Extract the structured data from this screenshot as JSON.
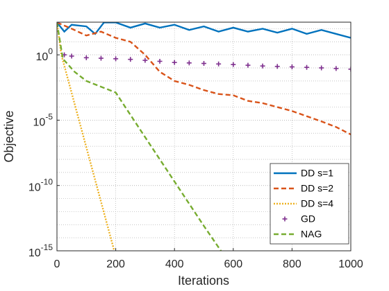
{
  "chart_data": {
    "type": "line",
    "xlabel": "Iterations",
    "ylabel": "Objective",
    "xlim": [
      0,
      1000
    ],
    "xticks": [
      0,
      200,
      400,
      600,
      800,
      1000
    ],
    "ylim": [
      1e-15,
      316
    ],
    "yticks": [
      {
        "value": 1e-15,
        "label": "10^-15"
      },
      {
        "value": 1e-10,
        "label": "10^-10"
      },
      {
        "value": 1e-05,
        "label": "10^-5"
      },
      {
        "value": 1,
        "label": "10^0"
      }
    ],
    "log_y": true,
    "grid": true,
    "minor_grid": true,
    "legend": "lower right",
    "series": [
      {
        "name": "DD s=1",
        "color": "#0072bd",
        "linestyle": "solid",
        "x": [
          0,
          25,
          50,
          100,
          130,
          160,
          200,
          250,
          300,
          350,
          400,
          450,
          500,
          550,
          600,
          650,
          700,
          750,
          800,
          850,
          900,
          950,
          1000
        ],
        "values": [
          300,
          60,
          200,
          150,
          40,
          300,
          300,
          120,
          250,
          120,
          200,
          80,
          150,
          60,
          120,
          60,
          100,
          50,
          100,
          40,
          80,
          40,
          20
        ]
      },
      {
        "name": "DD s=2",
        "color": "#d95319",
        "linestyle": "dashed",
        "x": [
          0,
          50,
          100,
          150,
          200,
          250,
          300,
          350,
          400,
          450,
          500,
          550,
          600,
          650,
          700,
          750,
          800,
          850,
          900,
          950,
          1000
        ],
        "values": [
          300,
          100,
          30,
          60,
          20,
          10,
          1,
          0.05,
          0.01,
          0.005,
          0.002,
          0.001,
          0.0008,
          0.0003,
          0.0002,
          0.0001,
          5e-05,
          2e-05,
          8e-06,
          3e-06,
          8e-07
        ]
      },
      {
        "name": "DD s=4",
        "color": "#edb120",
        "linestyle": "dotted",
        "x": [
          0,
          15,
          195
        ],
        "values": [
          300,
          1,
          1e-15
        ]
      },
      {
        "name": "GD",
        "color": "#7e2f8e",
        "linestyle": "none",
        "marker": "plus",
        "x": [
          0,
          25,
          50,
          100,
          150,
          200,
          250,
          300,
          350,
          400,
          450,
          500,
          550,
          600,
          650,
          700,
          750,
          800,
          850,
          900,
          950,
          1000
        ],
        "values": [
          300,
          1,
          0.8,
          0.6,
          0.55,
          0.5,
          0.45,
          0.38,
          0.32,
          0.26,
          0.24,
          0.22,
          0.2,
          0.18,
          0.16,
          0.14,
          0.13,
          0.12,
          0.11,
          0.1,
          0.09,
          0.08
        ]
      },
      {
        "name": "NAG",
        "color": "#77ac30",
        "linestyle": "dashed",
        "x": [
          0,
          20,
          60,
          100,
          200,
          300,
          400,
          500,
          558
        ],
        "values": [
          300,
          0.5,
          0.05,
          0.01,
          0.0013,
          5e-07,
          2e-10,
          8e-14,
          1e-15
        ]
      }
    ]
  }
}
